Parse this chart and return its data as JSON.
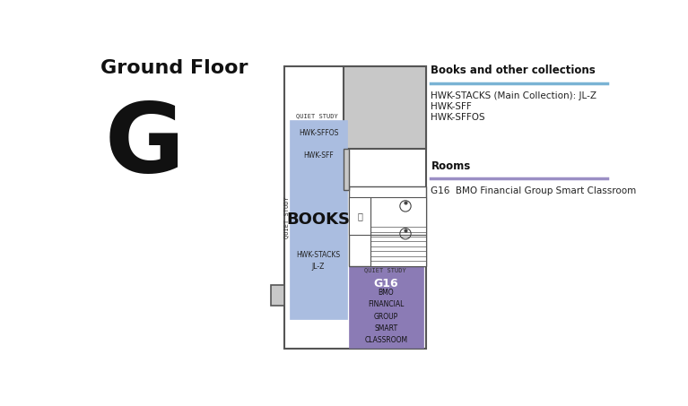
{
  "title": "Ground Floor",
  "floor_letter": "G",
  "bg_color": "#ffffff",
  "gray_fill": "#c8c8c8",
  "blue_fill": "#aabde0",
  "purple_fill": "#8b7bb5",
  "legend_title_books": "Books and other collections",
  "legend_line_books_color": "#7ab3d4",
  "legend_items_books": [
    "HWK-STACKS (Main Collection): JL-Z",
    "HWK-SFF",
    "HWK-SFFOS"
  ],
  "legend_title_rooms": "Rooms",
  "legend_line_rooms_color": "#9b8fc5",
  "legend_items_rooms": [
    "G16  BMO Financial Group Smart Classroom"
  ],
  "books_label": "BOOKS",
  "quiet_study_top": "QUIET STUDY",
  "quiet_study_left": "QUIET STUDY",
  "quiet_study_bottom": "QUIET STUDY",
  "hwk_sffos": "HWK-SFFOS",
  "hwk_sff": "HWK-SFF",
  "hwk_stacks": "HWK-STACKS\nJL-Z",
  "g16_label": "G16",
  "g16_sub": "BMO\nFINANCIAL\nGROUP\nSMART\nCLASSROOM"
}
